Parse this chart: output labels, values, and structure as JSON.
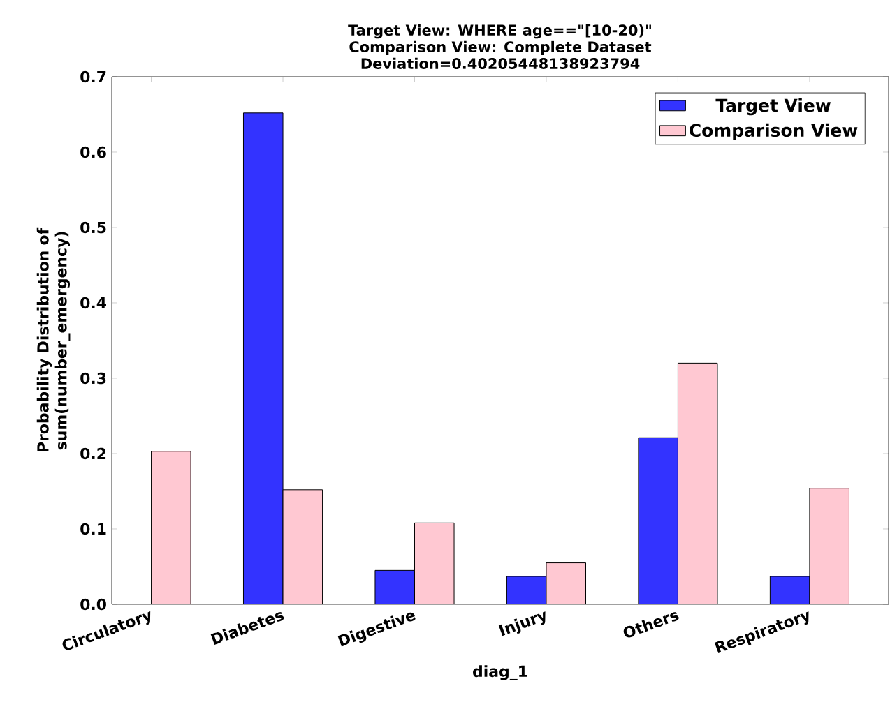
{
  "chart_data": {
    "type": "bar",
    "title": "Target View: WHERE age==\"[10-20)\"",
    "subtitle": "Comparison View: Complete Dataset",
    "annotations": [
      "Deviation=0.40205448138923794"
    ],
    "xlabel": "diag_1",
    "ylabel": "Probability Distribution of sum(number_emergency)",
    "categories": [
      "Circulatory",
      "Diabetes",
      "Digestive",
      "Injury",
      "Others",
      "Respiratory"
    ],
    "series": [
      {
        "name": "Target View",
        "color": "#3333ff",
        "values": [
          null,
          0.652,
          0.045,
          0.037,
          0.221,
          0.037
        ]
      },
      {
        "name": "Comparison View",
        "color": "#ffc8d2",
        "values": [
          0.203,
          0.152,
          0.108,
          0.055,
          0.32,
          0.154
        ]
      }
    ],
    "ylim": [
      0,
      0.7
    ],
    "yticks": [
      {
        "value": 0,
        "label": "0.0"
      },
      0.1,
      0.2,
      0.3,
      0.4,
      0.5,
      0.6,
      0.7
    ],
    "legend": "top right",
    "grid": false
  }
}
